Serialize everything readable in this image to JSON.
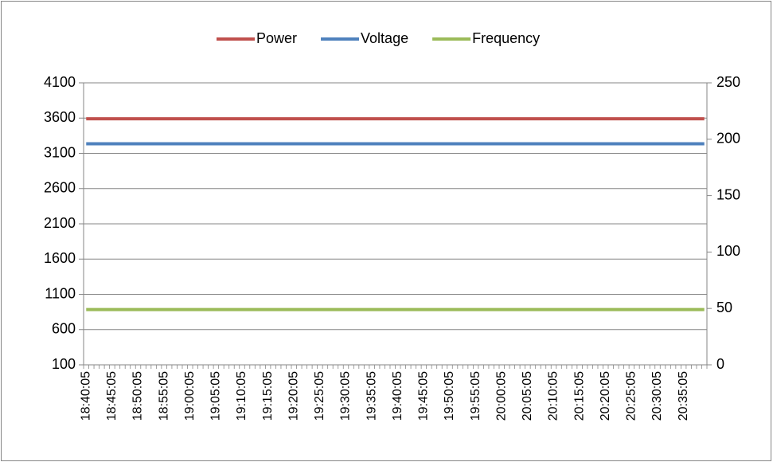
{
  "chart_data": {
    "type": "line",
    "categories": [
      "18:40:05",
      null,
      null,
      null,
      null,
      "18:45:05",
      null,
      null,
      null,
      null,
      "18:50:05",
      null,
      null,
      null,
      null,
      "18:55:05",
      null,
      null,
      null,
      null,
      "19:00:05",
      null,
      null,
      null,
      null,
      "19:05:05",
      null,
      null,
      null,
      null,
      "19:10:05",
      null,
      null,
      null,
      null,
      "19:15:05",
      null,
      null,
      null,
      null,
      "19:20:05",
      null,
      null,
      null,
      null,
      "19:25:05",
      null,
      null,
      null,
      null,
      "19:30:05",
      null,
      null,
      null,
      null,
      "19:35:05",
      null,
      null,
      null,
      null,
      "19:40:05",
      null,
      null,
      null,
      null,
      "19:45:05",
      null,
      null,
      null,
      null,
      "19:50:05",
      null,
      null,
      null,
      null,
      "19:55:05",
      null,
      null,
      null,
      null,
      "20:00:05",
      null,
      null,
      null,
      null,
      "20:05:05",
      null,
      null,
      null,
      null,
      "20:10:05",
      null,
      null,
      null,
      null,
      "20:15:05",
      null,
      null,
      null,
      null,
      "20:20:05",
      null,
      null,
      null,
      null,
      "20:25:05",
      null,
      null,
      null,
      null,
      "20:30:05",
      null,
      null,
      null,
      null,
      "20:35:05",
      null,
      null,
      null,
      null
    ],
    "series": [
      {
        "name": "Power",
        "color": "#c0504d",
        "axis": "y",
        "values": [
          3590,
          3590,
          3590,
          3590,
          3590,
          3590,
          3590,
          3590,
          3590,
          3590,
          3590,
          3590,
          3590,
          3590,
          3590,
          3590,
          3590,
          3590,
          3590,
          3590,
          3590,
          3590,
          3590,
          3590,
          3590,
          3590,
          3590,
          3590,
          3590,
          3590,
          3590,
          3590,
          3590,
          3590,
          3590,
          3590,
          3590,
          3590,
          3590,
          3590,
          3590,
          3590,
          3590,
          3590,
          3590,
          3590,
          3590,
          3590,
          3590,
          3590,
          3590,
          3590,
          3590,
          3590,
          3590,
          3590,
          3590,
          3590,
          3590,
          3590,
          3590,
          3590,
          3590,
          3590,
          3590,
          3590,
          3590,
          3590,
          3590,
          3590,
          3590,
          3590,
          3590,
          3590,
          3590,
          3590,
          3590,
          3590,
          3590,
          3590,
          3590,
          3590,
          3590,
          3590,
          3590,
          3590,
          3590,
          3590,
          3590,
          3590,
          3590,
          3590,
          3590,
          3590,
          3590,
          3590,
          3590,
          3590,
          3590,
          3590,
          3590,
          3590,
          3590,
          3590,
          3590,
          3590,
          3590,
          3590,
          3590,
          3590,
          3590,
          3590,
          3590,
          3590,
          3590,
          3590,
          3590,
          3590,
          3590,
          3590
        ]
      },
      {
        "name": "Voltage",
        "color": "#4f81bd",
        "axis": "y2",
        "values": [
          196,
          196,
          196,
          196,
          196,
          196,
          196,
          196,
          196,
          196,
          196,
          196,
          196,
          196,
          196,
          196,
          196,
          196,
          196,
          196,
          196,
          196,
          196,
          196,
          196,
          196,
          196,
          196,
          196,
          196,
          196,
          196,
          196,
          196,
          196,
          196,
          196,
          196,
          196,
          196,
          196,
          196,
          196,
          196,
          196,
          196,
          196,
          196,
          196,
          196,
          196,
          196,
          196,
          196,
          196,
          196,
          196,
          196,
          196,
          196,
          196,
          196,
          196,
          196,
          196,
          196,
          196,
          196,
          196,
          196,
          196,
          196,
          196,
          196,
          196,
          196,
          196,
          196,
          196,
          196,
          196,
          196,
          196,
          196,
          196,
          196,
          196,
          196,
          196,
          196,
          196,
          196,
          196,
          196,
          196,
          196,
          196,
          196,
          196,
          196,
          196,
          196,
          196,
          196,
          196,
          196,
          196,
          196,
          196,
          196,
          196,
          196,
          196,
          196,
          196,
          196,
          196,
          196,
          196,
          196
        ]
      },
      {
        "name": "Frequency",
        "color": "#9bbb59",
        "axis": "y2",
        "values": [
          49,
          49,
          49,
          49,
          49,
          49,
          49,
          49,
          49,
          49,
          49,
          49,
          49,
          49,
          49,
          49,
          49,
          49,
          49,
          49,
          49,
          49,
          49,
          49,
          49,
          49,
          49,
          49,
          49,
          49,
          49,
          49,
          49,
          49,
          49,
          49,
          49,
          49,
          49,
          49,
          49,
          49,
          49,
          49,
          49,
          49,
          49,
          49,
          49,
          49,
          49,
          49,
          49,
          49,
          49,
          49,
          49,
          49,
          49,
          49,
          49,
          49,
          49,
          49,
          49,
          49,
          49,
          49,
          49,
          49,
          49,
          49,
          49,
          49,
          49,
          49,
          49,
          49,
          49,
          49,
          49,
          49,
          49,
          49,
          49,
          49,
          49,
          49,
          49,
          49,
          49,
          49,
          49,
          49,
          49,
          49,
          49,
          49,
          49,
          49,
          49,
          49,
          49,
          49,
          49,
          49,
          49,
          49,
          49,
          49,
          49,
          49,
          49,
          49,
          49,
          49,
          49,
          49,
          49,
          49
        ]
      }
    ],
    "ylim": [
      100,
      4100
    ],
    "yticks": [
      100,
      600,
      1100,
      1600,
      2100,
      2600,
      3100,
      3600,
      4100
    ],
    "y2lim": [
      0,
      250
    ],
    "y2ticks": [
      0,
      50,
      100,
      150,
      200,
      250
    ],
    "grid": true,
    "legend": "top"
  }
}
